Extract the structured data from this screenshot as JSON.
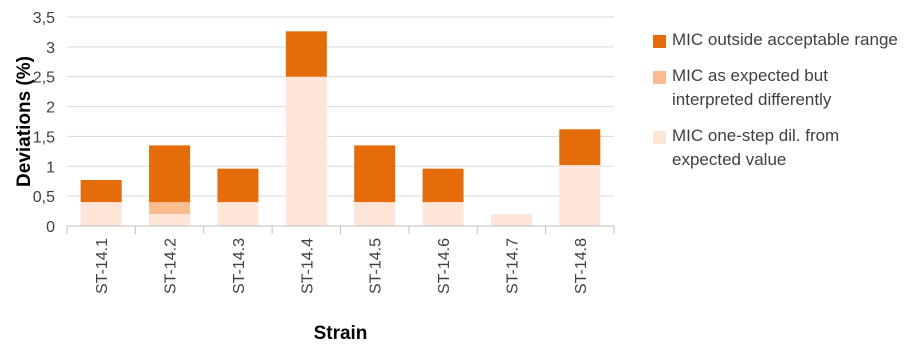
{
  "chart_data": {
    "type": "bar",
    "stacked": true,
    "categories": [
      "ST-14.1",
      "ST-14.2",
      "ST-14.3",
      "ST-14.4",
      "ST-14.5",
      "ST-14.6",
      "ST-14.7",
      "ST-14.8"
    ],
    "series": [
      {
        "name": "MIC one-step dil. from expected value",
        "color": "#FDE5D8",
        "values": [
          0.4,
          0.2,
          0.4,
          2.5,
          0.4,
          0.4,
          0.2,
          1.02
        ]
      },
      {
        "name": "MIC as expected but interpreted differently",
        "color": "#F9BC8F",
        "values": [
          0,
          0.2,
          0,
          0,
          0,
          0,
          0,
          0
        ]
      },
      {
        "name": "MIC outside acceptable range",
        "color": "#E46C0A",
        "values": [
          0.37,
          0.95,
          0.56,
          0.76,
          0.95,
          0.56,
          0,
          0.6
        ]
      }
    ],
    "legend_order": [
      2,
      1,
      0
    ],
    "yticks": [
      "0",
      "0,5",
      "1",
      "1,5",
      "2",
      "2,5",
      "3",
      "3,5"
    ],
    "ylim": [
      0,
      3.5
    ],
    "xlabel": "Strain",
    "ylabel": "Deviations (%)",
    "grid": "horizontal",
    "legend_position": "right"
  }
}
